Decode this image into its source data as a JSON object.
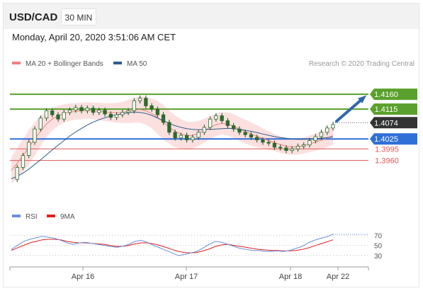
{
  "header": {
    "pair": "USD/CAD",
    "timeframe": "30 MIN"
  },
  "timestamp": "Monday, April 20, 2020 3:51:06 AM CET",
  "legend": [
    {
      "label": "MA 20 + Bollinger Bands",
      "color": "#f08080"
    },
    {
      "label": "MA 50",
      "color": "#2f5d8c"
    }
  ],
  "credit": "Research © 2020 Trading Central",
  "rsi_legend": [
    {
      "label": "RSI",
      "color": "#6a8fd8"
    },
    {
      "label": "9MA",
      "color": "#e02020"
    }
  ],
  "colors": {
    "resistance": "#5aa02c",
    "pivot": "#2f6fd8",
    "support": "#e05656",
    "current": "#333333",
    "forecast": "#2f6aa8"
  },
  "chart_data": [
    {
      "type": "line",
      "ylim": [
        1.3878,
        1.422
      ],
      "x_ticks": [
        "Apr 16",
        "Apr 17",
        "Apr 18",
        "Apr 22"
      ],
      "levels": [
        {
          "label": "1.4160",
          "value": 1.416,
          "role": "resistance"
        },
        {
          "label": "1.4115",
          "value": 1.4115,
          "role": "resistance"
        },
        {
          "label": "1.4074",
          "value": 1.4074,
          "role": "current"
        },
        {
          "label": "1.4025",
          "value": 1.4025,
          "role": "pivot"
        },
        {
          "label": "1.3995",
          "value": 1.3995,
          "role": "support"
        },
        {
          "label": "1.3960",
          "value": 1.396,
          "role": "support"
        }
      ],
      "series": [
        {
          "name": "USD/CAD",
          "values": [
            1.3903,
            1.3939,
            1.3975,
            1.4015,
            1.4055,
            1.4088,
            1.411,
            1.4098,
            1.4085,
            1.4105,
            1.4112,
            1.412,
            1.411,
            1.4118,
            1.4105,
            1.4112,
            1.41,
            1.409,
            1.4098,
            1.4105,
            1.411,
            1.414,
            1.4148,
            1.4125,
            1.4115,
            1.4098,
            1.4075,
            1.4045,
            1.4028,
            1.4036,
            1.4022,
            1.403,
            1.4045,
            1.406,
            1.4085,
            1.4095,
            1.408,
            1.4065,
            1.4055,
            1.4045,
            1.4038,
            1.403,
            1.4022,
            1.4015,
            1.4012,
            1.4,
            1.3998,
            1.399,
            1.3995,
            1.4003,
            1.4007,
            1.402,
            1.4032,
            1.4045,
            1.4058,
            1.4068
          ]
        },
        {
          "name": "MA 20",
          "values": [
            1.393,
            1.3952,
            1.3975,
            1.4,
            1.4025,
            1.4048,
            1.407,
            1.4085,
            1.4095,
            1.4102,
            1.4106,
            1.4108,
            1.411,
            1.4111,
            1.411,
            1.4108,
            1.4106,
            1.4105,
            1.4104,
            1.4105,
            1.4108,
            1.4112,
            1.4114,
            1.411,
            1.4102,
            1.409,
            1.4075,
            1.406,
            1.4048,
            1.404,
            1.4035,
            1.4036,
            1.4042,
            1.405,
            1.406,
            1.4068,
            1.4072,
            1.407,
            1.4064,
            1.4055,
            1.4047,
            1.404,
            1.4033,
            1.4027,
            1.402,
            1.4014,
            1.4008,
            1.4003,
            1.4001,
            1.4002,
            1.4005,
            1.401,
            1.4015,
            1.4021,
            1.4028,
            1.4035
          ]
        },
        {
          "name": "MA 50",
          "values": [
            1.3905,
            1.3912,
            1.3922,
            1.3934,
            1.3948,
            1.3962,
            1.3977,
            1.3992,
            1.4006,
            1.402,
            1.4034,
            1.4046,
            1.4057,
            1.4067,
            1.4076,
            1.4083,
            1.4089,
            1.4094,
            1.4098,
            1.4101,
            1.4104,
            1.4106,
            1.4105,
            1.4102,
            1.4096,
            1.4088,
            1.408,
            1.4072,
            1.4065,
            1.406,
            1.4056,
            1.4054,
            1.4053,
            1.4053,
            1.4054,
            1.4055,
            1.4056,
            1.4057,
            1.4056,
            1.4054,
            1.4051,
            1.4048,
            1.4044,
            1.404,
            1.4036,
            1.4032,
            1.4029,
            1.4027,
            1.4025,
            1.4024,
            1.4024,
            1.4025,
            1.4026,
            1.4027,
            1.4029,
            1.4031
          ]
        },
        {
          "name": "Bollinger Band width",
          "values": [
            0.004,
            0.0045,
            0.005,
            0.0052,
            0.005,
            0.0045,
            0.004,
            0.0035,
            0.003,
            0.0028,
            0.0026,
            0.0025,
            0.0025,
            0.0025,
            0.0025,
            0.0026,
            0.0027,
            0.0028,
            0.003,
            0.0032,
            0.0035,
            0.0038,
            0.004,
            0.0042,
            0.0045,
            0.005,
            0.0052,
            0.005,
            0.0048,
            0.0045,
            0.0042,
            0.004,
            0.0038,
            0.0036,
            0.0034,
            0.0034,
            0.0034,
            0.0035,
            0.0036,
            0.0036,
            0.0036,
            0.0035,
            0.0033,
            0.003,
            0.0028,
            0.0026,
            0.0025,
            0.0024,
            0.0024,
            0.0024,
            0.0024,
            0.0025,
            0.0026,
            0.0027,
            0.0028,
            0.0028
          ]
        }
      ],
      "forecast": {
        "from": 1.4074,
        "to": 1.416
      }
    },
    {
      "type": "line",
      "ylim": [
        20,
        90
      ],
      "y_ticks": [
        "70",
        "50",
        "30"
      ],
      "series": [
        {
          "name": "RSI",
          "values": [
            42,
            50,
            58,
            62,
            65,
            68,
            66,
            64,
            60,
            55,
            52,
            55,
            56,
            54,
            52,
            50,
            48,
            46,
            48,
            52,
            58,
            60,
            56,
            50,
            45,
            40,
            35,
            30,
            32,
            35,
            38,
            45,
            52,
            58,
            56,
            52,
            48,
            44,
            42,
            40,
            40,
            38,
            38,
            39,
            38,
            40,
            44,
            48,
            55,
            60,
            64,
            67,
            72
          ]
        },
        {
          "name": "9MA",
          "values": [
            40,
            45,
            50,
            55,
            58,
            61,
            62,
            62,
            61,
            58,
            56,
            55,
            55,
            54,
            53,
            52,
            50,
            48,
            48,
            50,
            53,
            55,
            55,
            53,
            50,
            46,
            42,
            38,
            36,
            35,
            36,
            39,
            43,
            48,
            51,
            52,
            50,
            48,
            46,
            44,
            42,
            41,
            40,
            40,
            39,
            39,
            40,
            42,
            45,
            49,
            53,
            57,
            61
          ]
        }
      ]
    }
  ]
}
